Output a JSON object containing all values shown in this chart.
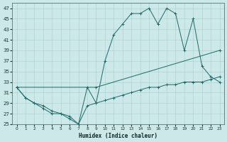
{
  "xlabel": "Humidex (Indice chaleur)",
  "bg_color": "#cce8e8",
  "grid_color": "#aacccc",
  "line_color": "#1a6b6b",
  "xlim": [
    -0.5,
    23.5
  ],
  "ylim": [
    25,
    48
  ],
  "xticks": [
    0,
    1,
    2,
    3,
    4,
    5,
    6,
    7,
    8,
    9,
    10,
    11,
    12,
    13,
    14,
    15,
    16,
    17,
    18,
    19,
    20,
    21,
    22,
    23
  ],
  "yticks": [
    25,
    27,
    29,
    31,
    33,
    35,
    37,
    39,
    41,
    43,
    45,
    47
  ],
  "series": [
    {
      "x": [
        0,
        1,
        2,
        3,
        4,
        5,
        6,
        7,
        8,
        9,
        10,
        11,
        12,
        13,
        14,
        15,
        16,
        17,
        18,
        19,
        20,
        21,
        22,
        23
      ],
      "y": [
        32,
        30,
        29,
        28.5,
        27.5,
        27,
        26.5,
        25,
        28.5,
        29,
        29.5,
        30,
        30.5,
        31,
        31.5,
        32,
        32,
        32.5,
        32.5,
        33,
        33,
        33,
        33.5,
        34
      ]
    },
    {
      "x": [
        0,
        9,
        23
      ],
      "y": [
        32,
        32,
        39
      ]
    },
    {
      "x": [
        0,
        1,
        2,
        3,
        4,
        5,
        6,
        7,
        8,
        9,
        10,
        11,
        12,
        13,
        14,
        15,
        16,
        17,
        18,
        19,
        20,
        21,
        22,
        23
      ],
      "y": [
        32,
        30,
        29,
        28,
        27,
        27,
        26,
        25,
        32,
        29,
        37,
        42,
        44,
        46,
        46,
        47,
        44,
        47,
        46,
        39,
        45,
        36,
        34,
        33
      ]
    }
  ]
}
